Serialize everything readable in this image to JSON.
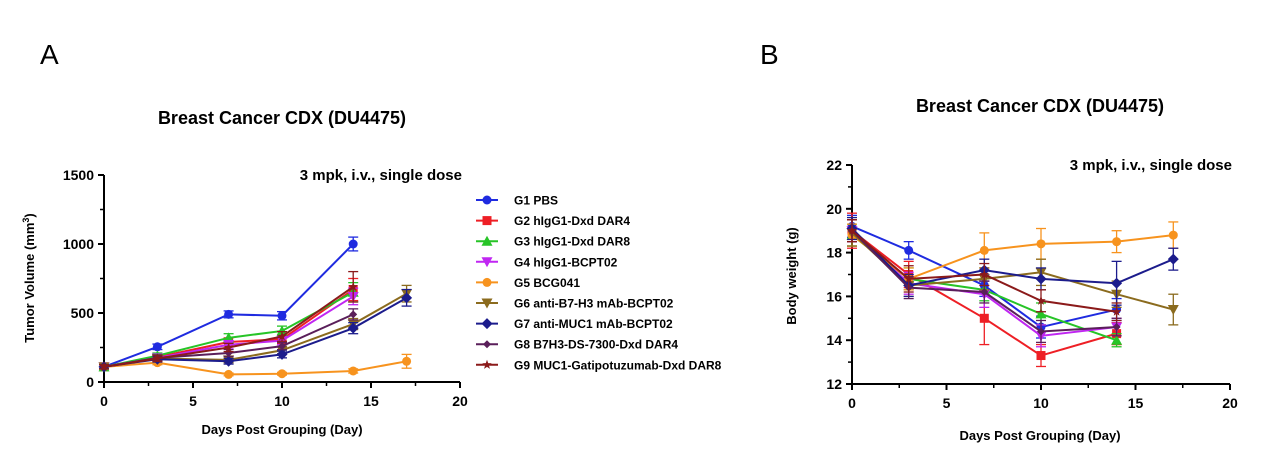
{
  "colors": {
    "G1": "#1f2be0",
    "G2": "#ee1f25",
    "G3": "#27c427",
    "G4": "#c026f2",
    "G5": "#f7931e",
    "G6": "#8b6b1e",
    "G7": "#1c1c8c",
    "G8": "#5a1f5a",
    "G9": "#8b1a1a"
  },
  "panels": {
    "A": {
      "letter": "A"
    },
    "B": {
      "letter": "B"
    }
  },
  "chart_data": [
    {
      "type": "line",
      "panel": "A",
      "title": "Breast Cancer CDX (DU4475)",
      "annotation": "3 mpk, i.v., single dose",
      "xlabel": "Days Post Grouping (Day)",
      "ylabel_main": "Tumor Volume (mm",
      "ylabel_sup": "3",
      "ylabel_tail": ")",
      "xlim": [
        0,
        20
      ],
      "ylim": [
        0,
        1500
      ],
      "xticks": [
        "0",
        "5",
        "10",
        "15",
        "20"
      ],
      "yticks": [
        "0",
        "500",
        "1000",
        "1500"
      ],
      "legend_position": "right",
      "series": [
        {
          "key": "G1",
          "name": "G1 PBS",
          "marker": "circle",
          "x": [
            0,
            3,
            7,
            10,
            14
          ],
          "y": [
            110,
            255,
            490,
            480,
            1000
          ],
          "err": [
            15,
            20,
            25,
            30,
            50
          ]
        },
        {
          "key": "G2",
          "name": "G2 hIgG1-Dxd DAR4",
          "marker": "square",
          "x": [
            0,
            3,
            7,
            10,
            14
          ],
          "y": [
            110,
            180,
            290,
            310,
            670
          ],
          "err": [
            15,
            20,
            30,
            30,
            80
          ]
        },
        {
          "key": "G3",
          "name": "G3 hIgG1-Dxd DAR8",
          "marker": "triangle-up",
          "x": [
            0,
            3,
            7,
            10,
            14
          ],
          "y": [
            110,
            190,
            320,
            370,
            650
          ],
          "err": [
            15,
            20,
            30,
            35,
            70
          ]
        },
        {
          "key": "G4",
          "name": "G4 hIgG1-BCPT02",
          "marker": "triangle-down",
          "x": [
            0,
            3,
            7,
            10,
            14
          ],
          "y": [
            110,
            175,
            270,
            300,
            620
          ],
          "err": [
            15,
            20,
            30,
            30,
            60
          ]
        },
        {
          "key": "G5",
          "name": "G5 BCG041",
          "marker": "circle",
          "x": [
            0,
            3,
            7,
            10,
            14,
            17
          ],
          "y": [
            110,
            140,
            55,
            60,
            80,
            150
          ],
          "err": [
            15,
            15,
            10,
            10,
            15,
            50
          ]
        },
        {
          "key": "G6",
          "name": "G6 anti-B7-H3 mAb-BCPT02",
          "marker": "triangle-down",
          "x": [
            0,
            3,
            7,
            10,
            14,
            17
          ],
          "y": [
            110,
            170,
            160,
            230,
            420,
            640
          ],
          "err": [
            15,
            20,
            20,
            25,
            40,
            60
          ]
        },
        {
          "key": "G7",
          "name": "G7 anti-MUC1 mAb-BCPT02",
          "marker": "diamond",
          "x": [
            0,
            3,
            7,
            10,
            14,
            17
          ],
          "y": [
            110,
            165,
            150,
            200,
            390,
            610
          ],
          "err": [
            15,
            20,
            20,
            25,
            40,
            60
          ]
        },
        {
          "key": "G8",
          "name": "G8 B7H3-DS-7300-Dxd DAR4",
          "marker": "diamond-small",
          "x": [
            0,
            3,
            7,
            10,
            14
          ],
          "y": [
            110,
            175,
            210,
            260,
            490
          ],
          "err": [
            15,
            20,
            25,
            25,
            40
          ]
        },
        {
          "key": "G9",
          "name": "G9 MUC1-Gatipotuzumab-Dxd DAR8",
          "marker": "star",
          "x": [
            0,
            3,
            7,
            10,
            14
          ],
          "y": [
            110,
            170,
            250,
            330,
            690
          ],
          "err": [
            15,
            20,
            30,
            35,
            110
          ]
        }
      ]
    },
    {
      "type": "line",
      "panel": "B",
      "title": "Breast Cancer CDX (DU4475)",
      "annotation": "3 mpk, i.v., single dose",
      "xlabel": "Days Post Grouping (Day)",
      "ylabel": "Body weight (g)",
      "xlim": [
        0,
        20
      ],
      "ylim": [
        12,
        22
      ],
      "xticks": [
        "0",
        "5",
        "10",
        "15",
        "20"
      ],
      "yticks": [
        "12",
        "14",
        "16",
        "18",
        "20",
        "22"
      ],
      "series": [
        {
          "key": "G1",
          "marker": "circle",
          "x": [
            0,
            3,
            7,
            10,
            14
          ],
          "y": [
            19.2,
            18.1,
            16.5,
            14.6,
            15.4
          ],
          "err": [
            0.5,
            0.4,
            0.5,
            0.5,
            0.5
          ]
        },
        {
          "key": "G2",
          "marker": "square",
          "x": [
            0,
            3,
            7,
            10,
            14
          ],
          "y": [
            19.0,
            17.0,
            15.0,
            13.3,
            14.3
          ],
          "err": [
            0.8,
            0.6,
            1.2,
            0.5,
            0.5
          ]
        },
        {
          "key": "G3",
          "marker": "triangle-up",
          "x": [
            0,
            3,
            7,
            10,
            14
          ],
          "y": [
            18.8,
            16.8,
            16.3,
            15.2,
            14.0
          ],
          "err": [
            0.5,
            0.5,
            0.5,
            0.5,
            0.3
          ]
        },
        {
          "key": "G4",
          "marker": "triangle-down",
          "x": [
            0,
            3,
            7,
            10,
            14
          ],
          "y": [
            19.0,
            16.6,
            16.1,
            14.2,
            14.6
          ],
          "err": [
            0.5,
            0.5,
            0.6,
            0.5,
            0.4
          ]
        },
        {
          "key": "G5",
          "marker": "circle",
          "x": [
            0,
            3,
            7,
            10,
            14,
            17
          ],
          "y": [
            18.8,
            16.8,
            18.1,
            18.4,
            18.5,
            18.8
          ],
          "err": [
            0.5,
            0.5,
            0.8,
            0.7,
            0.5,
            0.6
          ]
        },
        {
          "key": "G6",
          "marker": "triangle-down",
          "x": [
            0,
            3,
            7,
            10,
            14,
            17
          ],
          "y": [
            18.9,
            16.5,
            16.8,
            17.1,
            16.1,
            15.4
          ],
          "err": [
            0.6,
            0.5,
            0.5,
            0.6,
            0.6,
            0.7
          ]
        },
        {
          "key": "G7",
          "marker": "diamond",
          "x": [
            0,
            3,
            7,
            10,
            14,
            17
          ],
          "y": [
            19.1,
            16.5,
            17.2,
            16.8,
            16.6,
            17.7
          ],
          "err": [
            0.5,
            0.5,
            0.5,
            0.5,
            1.0,
            0.5
          ]
        },
        {
          "key": "G8",
          "marker": "diamond-small",
          "x": [
            0,
            3,
            7,
            10,
            14
          ],
          "y": [
            19.0,
            16.4,
            16.2,
            14.4,
            14.6
          ],
          "err": [
            0.5,
            0.5,
            0.5,
            0.5,
            0.4
          ]
        },
        {
          "key": "G9",
          "marker": "star",
          "x": [
            0,
            3,
            7,
            10,
            14
          ],
          "y": [
            19.0,
            16.8,
            17.0,
            15.8,
            15.3
          ],
          "err": [
            0.5,
            0.6,
            0.5,
            0.5,
            0.4
          ]
        }
      ]
    }
  ]
}
